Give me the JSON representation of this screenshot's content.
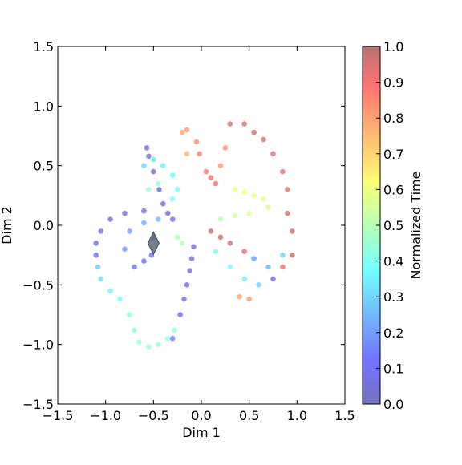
{
  "chart_data": {
    "type": "scatter",
    "title": "",
    "xlabel": "Dim 1",
    "ylabel": "Dim 2",
    "xlim": [
      -1.5,
      1.5
    ],
    "ylim": [
      -1.5,
      1.5
    ],
    "xticks": [
      "−1.5",
      "−1.0",
      "−0.5",
      "0.0",
      "0.5",
      "1.0",
      "1.5"
    ],
    "yticks": [
      "−1.5",
      "−1.0",
      "−0.5",
      "0.0",
      "0.5",
      "1.0",
      "1.5"
    ],
    "grid": false,
    "colormap": "jet",
    "colorbar": {
      "label": "Normalized Time",
      "range": [
        0.0,
        1.0
      ],
      "ticks": [
        "0.0",
        "0.1",
        "0.2",
        "0.3",
        "0.4",
        "0.5",
        "0.6",
        "0.7",
        "0.8",
        "0.9",
        "1.0"
      ]
    },
    "series": [
      {
        "points": [
          [
            -0.57,
            0.65,
            0.02
          ],
          [
            -0.55,
            0.58,
            0.03
          ],
          [
            -0.5,
            0.45,
            0.05
          ],
          [
            -0.44,
            0.3,
            0.05
          ],
          [
            -0.4,
            0.18,
            0.06
          ],
          [
            -0.35,
            0.1,
            0.06
          ],
          [
            -0.3,
            0.05,
            0.07
          ],
          [
            -0.6,
            0.12,
            0.04
          ],
          [
            -0.8,
            0.1,
            0.05
          ],
          [
            -0.95,
            0.05,
            0.06
          ],
          [
            -1.05,
            -0.05,
            0.06
          ],
          [
            -1.1,
            -0.15,
            0.07
          ],
          [
            -1.1,
            -0.25,
            0.08
          ],
          [
            -1.08,
            -0.35,
            0.28
          ],
          [
            -1.05,
            -0.45,
            0.33
          ],
          [
            -0.95,
            -0.55,
            0.35
          ],
          [
            -0.85,
            -0.62,
            0.38
          ],
          [
            -0.75,
            -0.75,
            0.42
          ],
          [
            -0.7,
            -0.88,
            0.44
          ],
          [
            -0.65,
            -0.98,
            0.45
          ],
          [
            -0.55,
            -1.02,
            0.45
          ],
          [
            -0.45,
            -1.0,
            0.44
          ],
          [
            -0.35,
            -0.95,
            0.43
          ],
          [
            -0.28,
            -0.88,
            0.42
          ],
          [
            -0.22,
            -0.75,
            0.1
          ],
          [
            -0.18,
            -0.62,
            0.08
          ],
          [
            -0.15,
            -0.5,
            0.07
          ],
          [
            -0.12,
            -0.38,
            0.06
          ],
          [
            -0.1,
            -0.28,
            0.05
          ],
          [
            -0.08,
            -0.18,
            0.05
          ],
          [
            -0.5,
            -0.1,
            0.08
          ],
          [
            -0.52,
            -0.25,
            0.1
          ],
          [
            -0.6,
            -0.3,
            0.12
          ],
          [
            -0.7,
            -0.35,
            0.14
          ],
          [
            -0.8,
            -0.2,
            0.18
          ],
          [
            -0.75,
            -0.05,
            0.2
          ],
          [
            -0.6,
            0.02,
            0.22
          ],
          [
            -0.45,
            0.05,
            0.25
          ],
          [
            -0.6,
            0.5,
            0.3
          ],
          [
            -0.5,
            0.55,
            0.33
          ],
          [
            -0.4,
            0.5,
            0.35
          ],
          [
            -0.3,
            0.42,
            0.36
          ],
          [
            -0.25,
            0.3,
            0.38
          ],
          [
            -0.3,
            0.22,
            0.4
          ],
          [
            -0.45,
            0.35,
            0.42
          ],
          [
            -0.55,
            0.3,
            0.44
          ],
          [
            -0.25,
            -0.1,
            0.48
          ],
          [
            -0.2,
            -0.15,
            0.5
          ],
          [
            -0.15,
            0.6,
            0.75
          ],
          [
            -0.2,
            0.78,
            0.78
          ],
          [
            -0.15,
            0.8,
            0.8
          ],
          [
            -0.05,
            0.7,
            0.82
          ],
          [
            -0.02,
            0.6,
            0.84
          ],
          [
            0.05,
            0.45,
            0.86
          ],
          [
            0.1,
            0.4,
            0.88
          ],
          [
            0.15,
            0.35,
            0.9
          ],
          [
            0.2,
            0.5,
            0.8
          ],
          [
            0.25,
            0.65,
            0.82
          ],
          [
            0.3,
            0.85,
            0.95
          ],
          [
            0.45,
            0.85,
            0.96
          ],
          [
            0.55,
            0.78,
            0.97
          ],
          [
            0.65,
            0.72,
            0.95
          ],
          [
            0.75,
            0.6,
            0.93
          ],
          [
            0.85,
            0.45,
            0.92
          ],
          [
            0.9,
            0.3,
            0.94
          ],
          [
            0.9,
            0.1,
            0.96
          ],
          [
            0.95,
            -0.05,
            0.97
          ],
          [
            0.95,
            -0.25,
            0.95
          ],
          [
            0.85,
            -0.35,
            0.9
          ],
          [
            0.75,
            -0.45,
            0.1
          ],
          [
            0.6,
            -0.5,
            0.3
          ],
          [
            0.45,
            -0.45,
            0.35
          ],
          [
            0.3,
            -0.35,
            0.38
          ],
          [
            0.15,
            -0.22,
            0.4
          ],
          [
            0.35,
            0.3,
            0.6
          ],
          [
            0.45,
            0.28,
            0.62
          ],
          [
            0.55,
            0.25,
            0.6
          ],
          [
            0.65,
            0.22,
            0.58
          ],
          [
            0.7,
            0.15,
            0.56
          ],
          [
            0.5,
            0.1,
            0.55
          ],
          [
            0.35,
            0.08,
            0.54
          ],
          [
            0.2,
            0.05,
            0.5
          ],
          [
            0.1,
            -0.05,
            0.98
          ],
          [
            0.2,
            -0.1,
            0.97
          ],
          [
            0.3,
            -0.15,
            0.95
          ],
          [
            0.45,
            -0.22,
            0.93
          ],
          [
            0.55,
            -0.28,
            0.2
          ],
          [
            0.7,
            -0.35,
            0.25
          ],
          [
            0.85,
            -0.25,
            0.3
          ],
          [
            0.4,
            -0.6,
            0.78
          ],
          [
            0.5,
            -0.62,
            0.8
          ],
          [
            -0.3,
            -0.95,
            0.15
          ]
        ]
      }
    ],
    "markers": [
      {
        "shape": "diamond",
        "x": -0.5,
        "y": -0.15,
        "color": "#5a6b78"
      }
    ]
  }
}
